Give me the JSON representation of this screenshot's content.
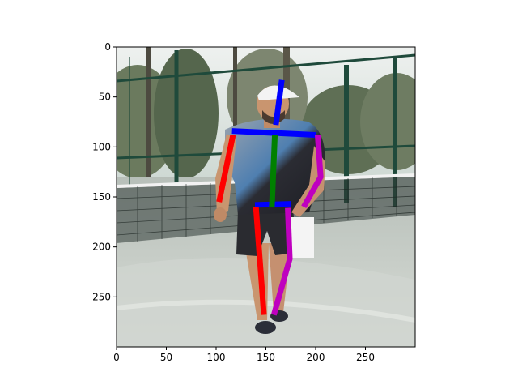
{
  "figure": {
    "photo_description_icon": "photo-of-man-walking-on-padel-court",
    "colors": {
      "frame": "#000000",
      "sky": "#dfe6e4",
      "trees": "#5d6d52",
      "court": "#c9cfca",
      "net": "#2f3a36",
      "fence": "#1f4a3b",
      "shirt": "#4a78a8",
      "shorts": "#2a2b30",
      "skin": "#c9956f"
    }
  },
  "axes": {
    "xlim": [
      0,
      300
    ],
    "ylim": [
      300,
      0
    ],
    "x_ticks": [
      0,
      50,
      100,
      150,
      200,
      250
    ],
    "y_ticks": [
      0,
      50,
      100,
      150,
      200,
      250
    ],
    "x_tick_labels": [
      "0",
      "50",
      "100",
      "150",
      "200",
      "250"
    ],
    "y_tick_labels": [
      "0",
      "50",
      "100",
      "150",
      "200",
      "250"
    ]
  },
  "skeleton": {
    "limbs": [
      {
        "name": "head-neck",
        "color": "#0000ff",
        "points": [
          [
            166,
            33
          ],
          [
            160,
            78
          ]
        ]
      },
      {
        "name": "shoulders",
        "color": "#0000ff",
        "points": [
          [
            116,
            84
          ],
          [
            200,
            88
          ]
        ]
      },
      {
        "name": "hips",
        "color": "#0000ff",
        "points": [
          [
            139,
            158
          ],
          [
            175,
            157
          ]
        ]
      },
      {
        "name": "torso",
        "color": "#008000",
        "points": [
          [
            159,
            88
          ],
          [
            156,
            160
          ]
        ]
      },
      {
        "name": "right-arm",
        "color": "#ff0000",
        "points": [
          [
            117,
            88
          ],
          [
            103,
            155
          ]
        ]
      },
      {
        "name": "right-leg",
        "color": "#ff0000",
        "points": [
          [
            140,
            160
          ],
          [
            148,
            268
          ]
        ]
      },
      {
        "name": "left-arm",
        "color": "#bf00bf",
        "points": [
          [
            202,
            88
          ],
          [
            205,
            130
          ],
          [
            188,
            160
          ]
        ]
      },
      {
        "name": "left-leg",
        "color": "#bf00bf",
        "points": [
          [
            172,
            161
          ],
          [
            174,
            212
          ],
          [
            158,
            268
          ]
        ]
      }
    ]
  }
}
